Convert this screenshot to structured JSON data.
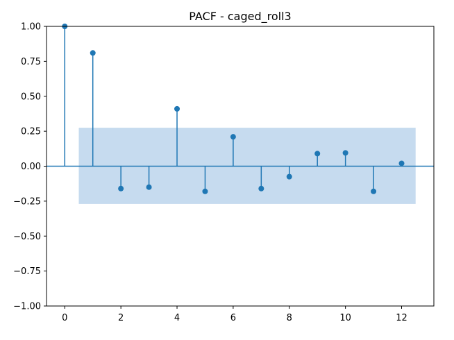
{
  "chart_data": {
    "type": "stem",
    "title": "PACF - caged_roll3",
    "xlabel": "",
    "ylabel": "",
    "xlim": [
      -0.65,
      13.15
    ],
    "ylim": [
      -1.0,
      1.0
    ],
    "xticks": [
      0,
      2,
      4,
      6,
      8,
      10,
      12
    ],
    "xtick_labels": [
      "0",
      "2",
      "4",
      "6",
      "8",
      "10",
      "12"
    ],
    "yticks": [
      -1.0,
      -0.75,
      -0.5,
      -0.25,
      0.0,
      0.25,
      0.5,
      0.75,
      1.0
    ],
    "ytick_labels": [
      "−1.00",
      "−0.75",
      "−0.50",
      "−0.25",
      "0.00",
      "0.25",
      "0.50",
      "0.75",
      "1.00"
    ],
    "lags": [
      0,
      1,
      2,
      3,
      4,
      5,
      6,
      7,
      8,
      9,
      10,
      11,
      12
    ],
    "values": [
      1.0,
      0.81,
      -0.16,
      -0.15,
      0.41,
      -0.18,
      0.21,
      -0.16,
      -0.075,
      0.09,
      0.095,
      -0.18,
      0.02
    ],
    "confidence_band": {
      "x_range": [
        0.5,
        12.5
      ],
      "lower": -0.27,
      "upper": 0.275
    },
    "grid": false,
    "colors": {
      "stem": "#1f77b4",
      "band": "#c6dbef",
      "zero_line": "#1f77b4"
    }
  }
}
